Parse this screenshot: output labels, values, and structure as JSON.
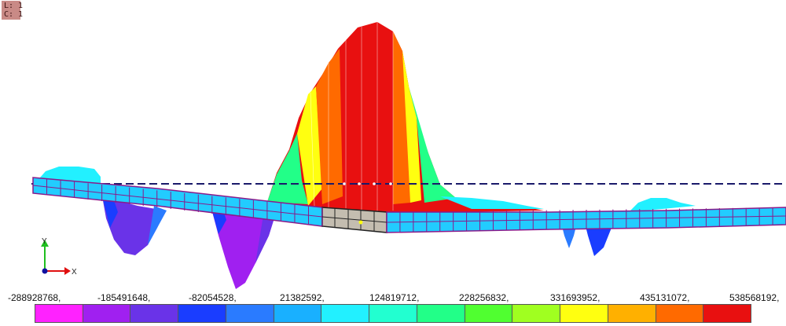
{
  "indicators": {
    "load_case": "L: 1",
    "combination": "C: 1"
  },
  "axes": {
    "y_label": "Y",
    "x_label": "X"
  },
  "legend": {
    "values": [
      "-288928768,",
      "-185491648,",
      "-82054528,",
      "21382592,",
      "124819712,",
      "228256832,",
      "331693952,",
      "435131072,",
      "538568192,"
    ],
    "colors": [
      "#ff22ff",
      "#a020f0",
      "#6a33e8",
      "#1a3dff",
      "#2a7bff",
      "#19b0ff",
      "#22f0ff",
      "#22ffd0",
      "#22ff88",
      "#50ff30",
      "#a0ff20",
      "#ffff10",
      "#ffb000",
      "#ff6a00",
      "#e81010"
    ]
  }
}
